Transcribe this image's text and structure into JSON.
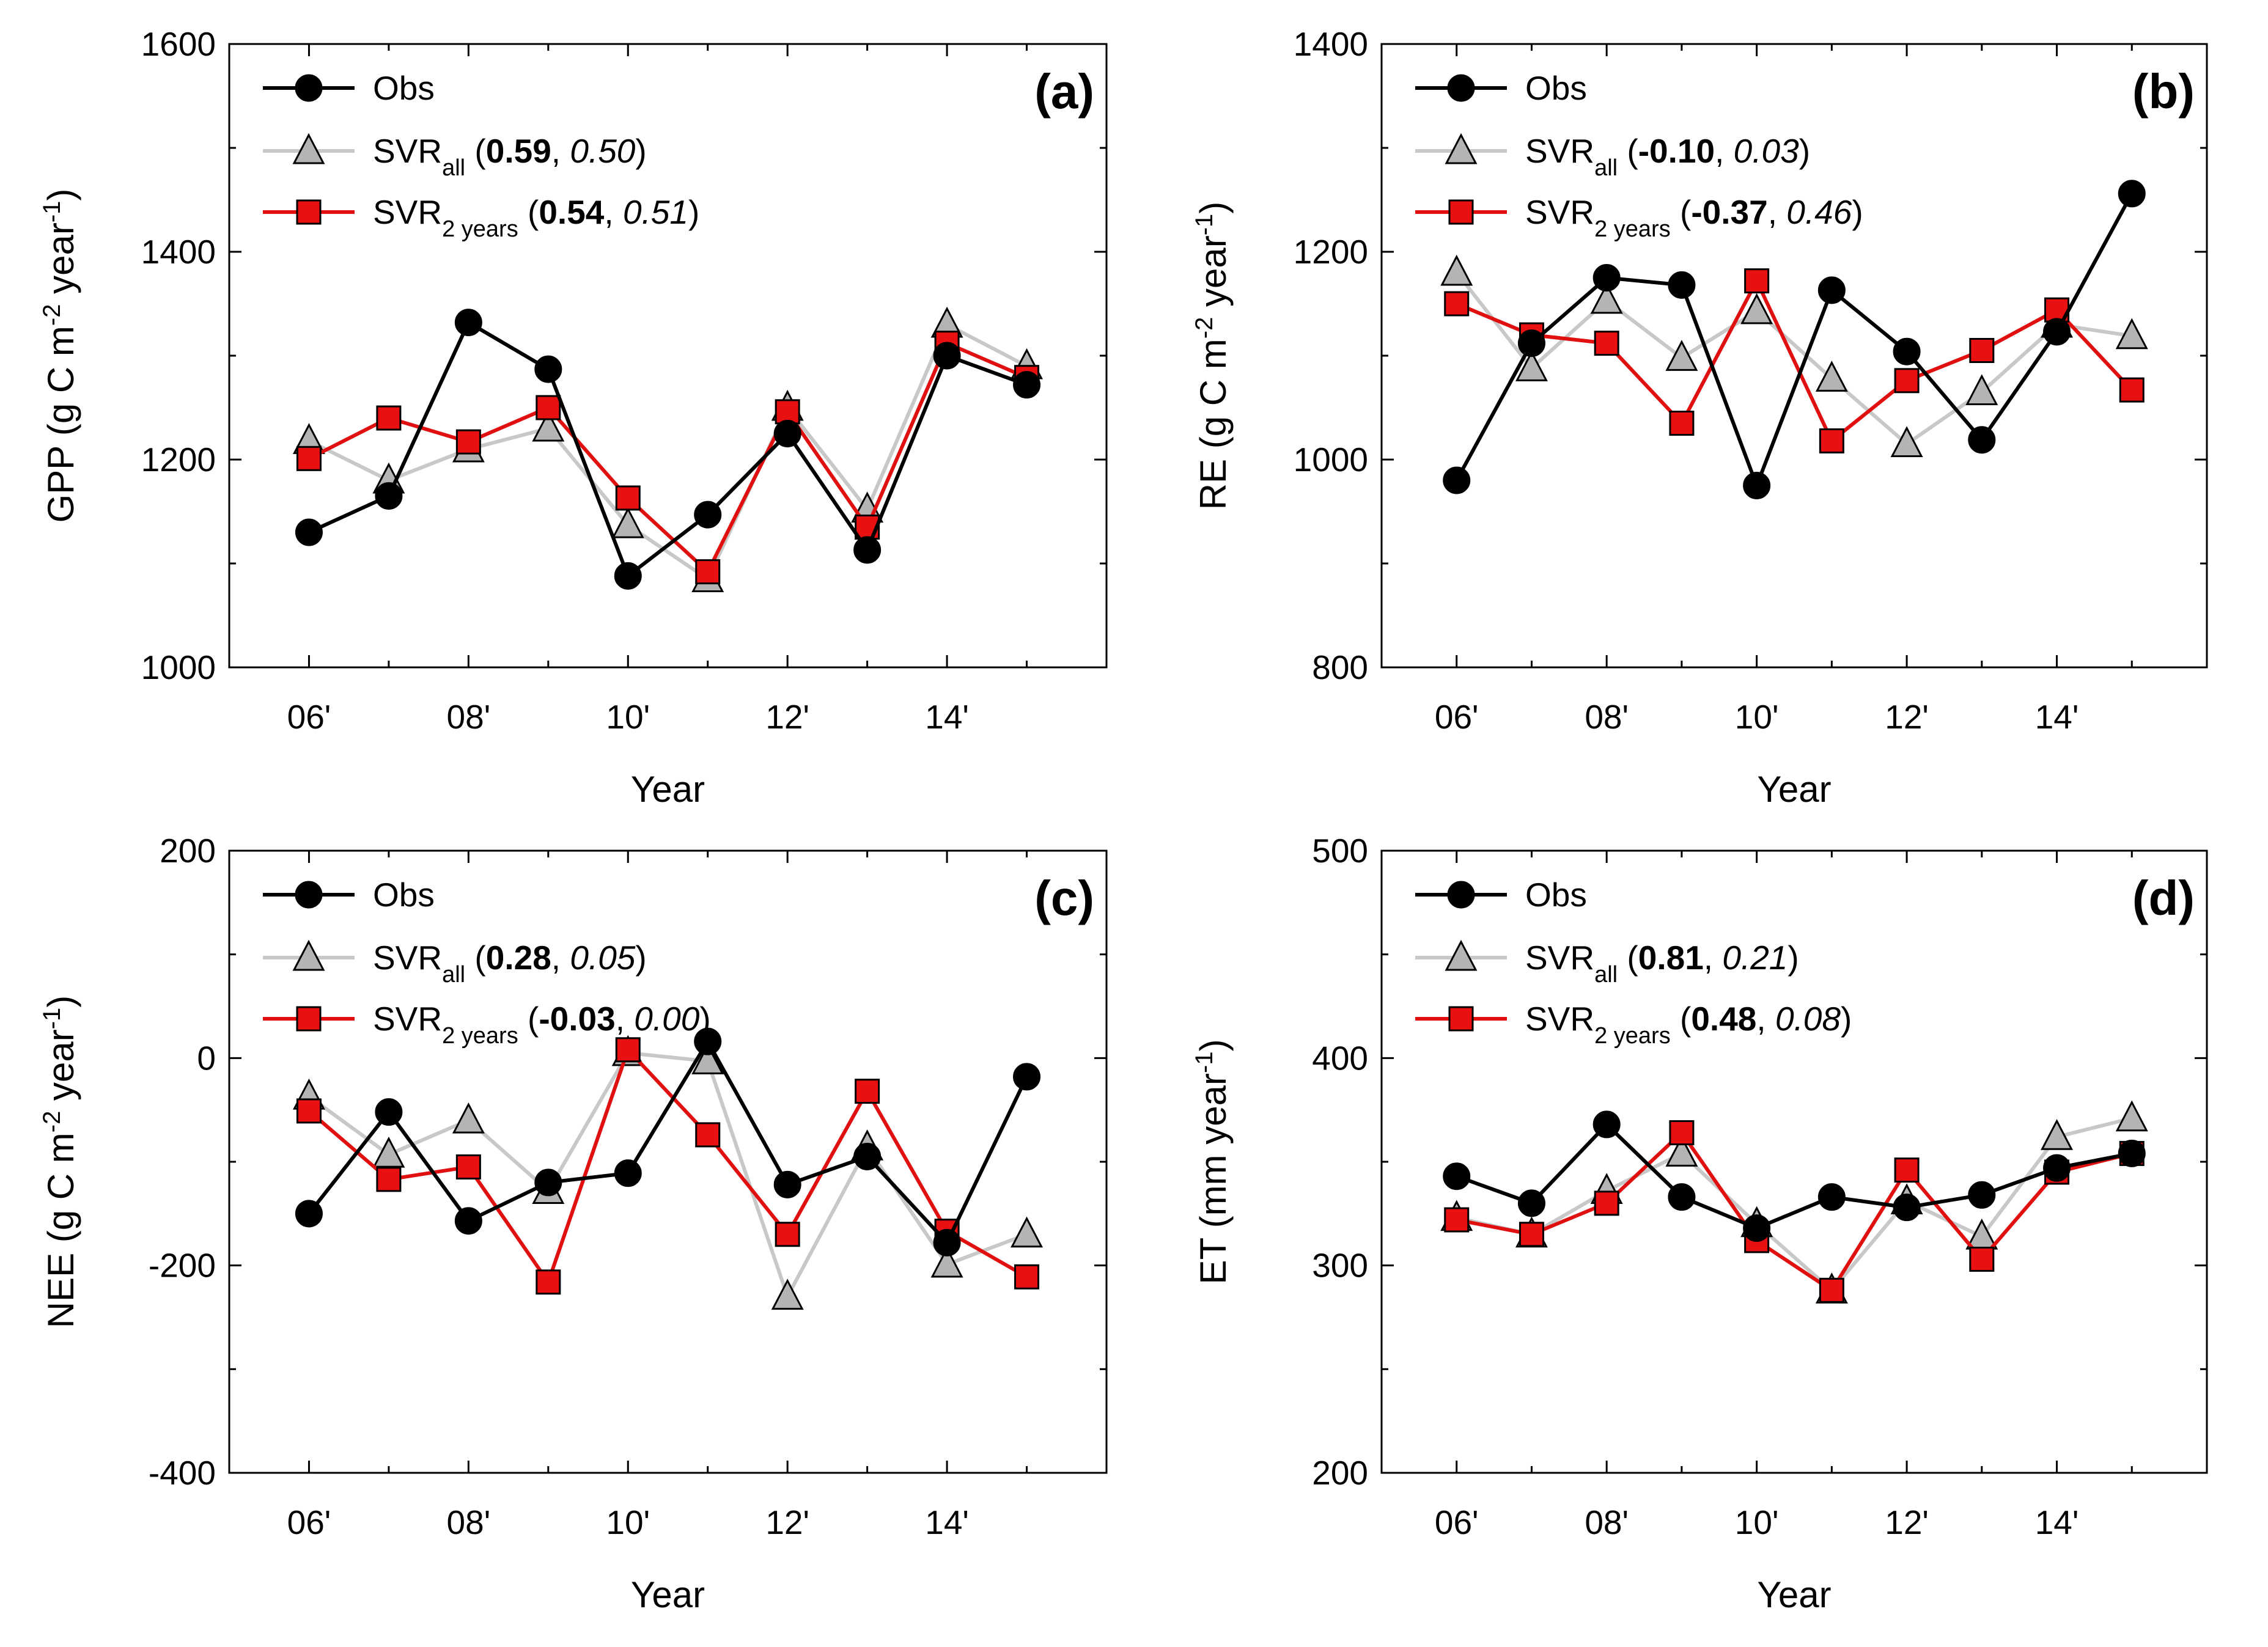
{
  "chart_data": [
    {
      "type": "line",
      "panel_label": "(a)",
      "ylabel": {
        "main": "GPP (g C m",
        "sup1": "-2",
        "mid": " year",
        "sup2": "-1",
        "end": ")"
      },
      "xlabel": "Year",
      "ylim": [
        1000,
        1600
      ],
      "yticks": [
        1000,
        1200,
        1400,
        1600
      ],
      "xlim": [
        2005,
        2016
      ],
      "xticks": [
        2006,
        2008,
        2010,
        2012,
        2014
      ],
      "xtick_labels": [
        "06'",
        "08'",
        "10'",
        "12'",
        "14'"
      ],
      "x": [
        2006,
        2007,
        2008,
        2009,
        2010,
        2011,
        2012,
        2013,
        2014,
        2015
      ],
      "series": [
        {
          "name": "Obs",
          "sub": "",
          "stat1": "",
          "stat2": "",
          "color": "#000000",
          "marker": "circle",
          "values": [
            1130,
            1165,
            1332,
            1287,
            1088,
            1147,
            1225,
            1113,
            1300,
            1272
          ]
        },
        {
          "name": "SVR",
          "sub": "all",
          "stat1": "0.59",
          "stat2": "0.50",
          "color": "#c0c0c0",
          "marker": "triangle",
          "values": [
            1218,
            1180,
            1210,
            1230,
            1137,
            1085,
            1250,
            1152,
            1330,
            1290
          ]
        },
        {
          "name": "SVR",
          "sub": "2 years",
          "stat1": "0.54",
          "stat2": "0.51",
          "color": "#e01010",
          "marker": "square",
          "values": [
            1201,
            1240,
            1217,
            1250,
            1163,
            1092,
            1246,
            1135,
            1312,
            1279
          ]
        }
      ]
    },
    {
      "type": "line",
      "panel_label": "(b)",
      "ylabel": {
        "main": "RE (g C m",
        "sup1": "-2",
        "mid": " year",
        "sup2": "-1",
        "end": ")"
      },
      "xlabel": "Year",
      "ylim": [
        800,
        1400
      ],
      "yticks": [
        800,
        1000,
        1200,
        1400
      ],
      "xlim": [
        2005,
        2016
      ],
      "xticks": [
        2006,
        2008,
        2010,
        2012,
        2014
      ],
      "xtick_labels": [
        "06'",
        "08'",
        "10'",
        "12'",
        "14'"
      ],
      "x": [
        2006,
        2007,
        2008,
        2009,
        2010,
        2011,
        2012,
        2013,
        2014,
        2015
      ],
      "series": [
        {
          "name": "Obs",
          "sub": "",
          "stat1": "",
          "stat2": "",
          "color": "#000000",
          "marker": "circle",
          "values": [
            980,
            1112,
            1175,
            1168,
            975,
            1163,
            1104,
            1019,
            1123,
            1256
          ]
        },
        {
          "name": "SVR",
          "sub": "all",
          "stat1": "-0.10",
          "stat2": "0.03",
          "color": "#c0c0c0",
          "marker": "triangle",
          "values": [
            1180,
            1088,
            1153,
            1098,
            1143,
            1078,
            1015,
            1065,
            1130,
            1119
          ]
        },
        {
          "name": "SVR",
          "sub": "2 years",
          "stat1": "-0.37",
          "stat2": "0.46",
          "color": "#e01010",
          "marker": "square",
          "values": [
            1150,
            1120,
            1112,
            1035,
            1172,
            1018,
            1076,
            1105,
            1144,
            1067
          ]
        }
      ]
    },
    {
      "type": "line",
      "panel_label": "(c)",
      "ylabel": {
        "main": "NEE (g C m",
        "sup1": "-2",
        "mid": " year",
        "sup2": "-1",
        "end": ")"
      },
      "xlabel": "Year",
      "ylim": [
        -400,
        200
      ],
      "yticks": [
        -400,
        -200,
        0,
        200
      ],
      "xlim": [
        2005,
        2016
      ],
      "xticks": [
        2006,
        2008,
        2010,
        2012,
        2014
      ],
      "xtick_labels": [
        "06'",
        "08'",
        "10'",
        "12'",
        "14'"
      ],
      "x": [
        2006,
        2007,
        2008,
        2009,
        2010,
        2011,
        2012,
        2013,
        2014,
        2015
      ],
      "series": [
        {
          "name": "Obs",
          "sub": "",
          "stat1": "",
          "stat2": "",
          "color": "#000000",
          "marker": "circle",
          "values": [
            -150,
            -52,
            -157,
            -120,
            -111,
            16,
            -122,
            -95,
            -178,
            -18
          ]
        },
        {
          "name": "SVR",
          "sub": "all",
          "stat1": "0.28",
          "stat2": "0.05",
          "color": "#c0c0c0",
          "marker": "triangle",
          "values": [
            -37,
            -93,
            -60,
            -128,
            5,
            -3,
            -230,
            -86,
            -199,
            -170
          ]
        },
        {
          "name": "SVR",
          "sub": "2 years",
          "stat1": "-0.03",
          "stat2": "0.00",
          "color": "#e01010",
          "marker": "square",
          "values": [
            -51,
            -117,
            -105,
            -216,
            8,
            -74,
            -170,
            -32,
            -167,
            -211
          ]
        }
      ]
    },
    {
      "type": "line",
      "panel_label": "(d)",
      "ylabel": {
        "main": "ET (mm year",
        "sup1": "",
        "mid": "",
        "sup2": "-1",
        "end": ")"
      },
      "xlabel": "Year",
      "ylim": [
        200,
        500
      ],
      "yticks": [
        200,
        300,
        400,
        500
      ],
      "xlim": [
        2005,
        2016
      ],
      "xticks": [
        2006,
        2008,
        2010,
        2012,
        2014
      ],
      "xtick_labels": [
        "06'",
        "08'",
        "10'",
        "12'",
        "14'"
      ],
      "x": [
        2006,
        2007,
        2008,
        2009,
        2010,
        2011,
        2012,
        2013,
        2014,
        2015
      ],
      "series": [
        {
          "name": "Obs",
          "sub": "",
          "stat1": "",
          "stat2": "",
          "color": "#000000",
          "marker": "circle",
          "values": [
            343,
            330,
            368,
            333,
            318,
            333,
            328,
            334,
            347,
            354
          ]
        },
        {
          "name": "SVR",
          "sub": "all",
          "stat1": "0.81",
          "stat2": "0.21",
          "color": "#c0c0c0",
          "marker": "triangle",
          "values": [
            323,
            315,
            336,
            354,
            320,
            288,
            331,
            314,
            362,
            371
          ]
        },
        {
          "name": "SVR",
          "sub": "2 years",
          "stat1": "0.48",
          "stat2": "0.08",
          "color": "#e01010",
          "marker": "square",
          "values": [
            322,
            315,
            330,
            364,
            312,
            288,
            346,
            303,
            345,
            354
          ]
        }
      ]
    }
  ]
}
